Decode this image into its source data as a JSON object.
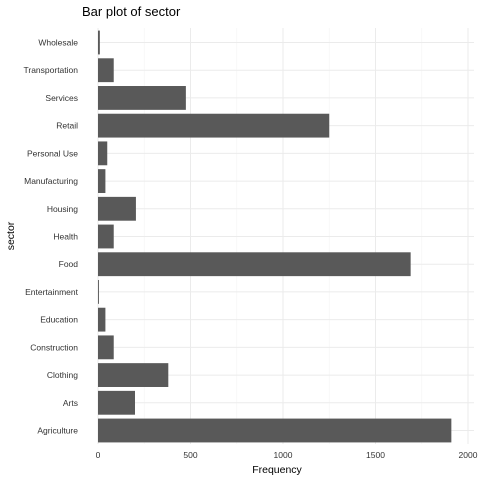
{
  "chart_data": {
    "type": "bar",
    "orientation": "horizontal",
    "title": "Bar plot of sector",
    "xlabel": "Frequency",
    "ylabel": "sector",
    "categories": [
      "Agriculture",
      "Arts",
      "Clothing",
      "Construction",
      "Education",
      "Entertainment",
      "Food",
      "Health",
      "Housing",
      "Manufacturing",
      "Personal Use",
      "Retail",
      "Services",
      "Transportation",
      "Wholesale"
    ],
    "values": [
      1910,
      200,
      380,
      85,
      40,
      5,
      1690,
      85,
      205,
      40,
      50,
      1250,
      475,
      85,
      10
    ],
    "xlim": [
      0,
      2000
    ],
    "xticks": [
      "0",
      "500",
      "1000",
      "1500",
      "2000"
    ],
    "grid": true,
    "colors": {
      "bar": "#595959",
      "grid": "#ebebeb",
      "background": "#ffffff"
    }
  }
}
